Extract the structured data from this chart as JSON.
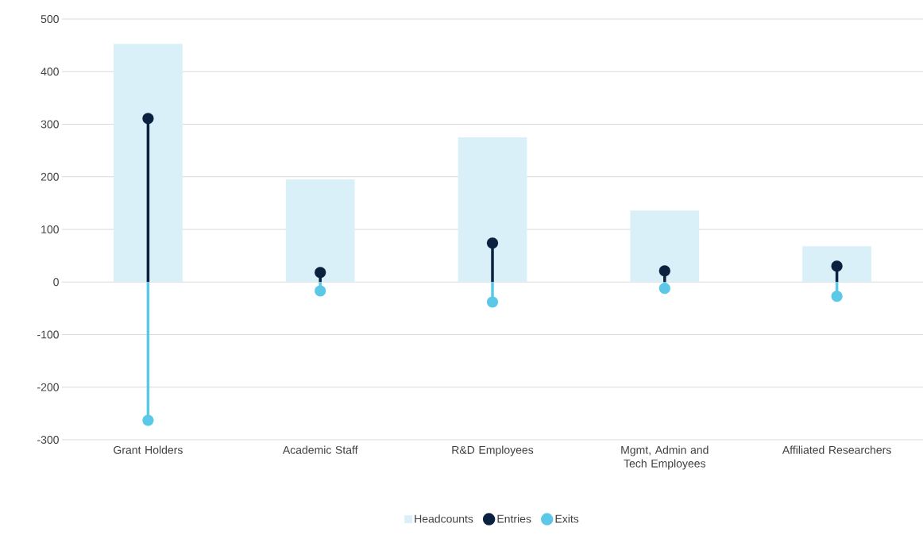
{
  "chart_data": {
    "type": "bar",
    "categories": [
      "Grant Holders",
      "Academic Staff",
      "R&D Employees",
      "Mgmt, Admin and Tech Employees",
      "Affiliated Researchers"
    ],
    "series": [
      {
        "name": "Headcounts",
        "color": "#d9f0f9",
        "values": [
          453,
          195,
          275,
          136,
          68
        ]
      },
      {
        "name": "Entries",
        "type": "lollipop",
        "color": "#0a2240",
        "values": [
          311,
          18,
          74,
          21,
          30
        ]
      },
      {
        "name": "Exits",
        "type": "lollipop",
        "color": "#5bc8e8",
        "values": [
          -263,
          -17,
          -38,
          -12,
          -27
        ]
      }
    ],
    "ylim": [
      -300,
      500
    ],
    "yticks": [
      -300,
      -200,
      -100,
      0,
      100,
      200,
      300,
      400,
      500
    ],
    "grid": "y",
    "legend": "bottom",
    "marker": "circle"
  }
}
